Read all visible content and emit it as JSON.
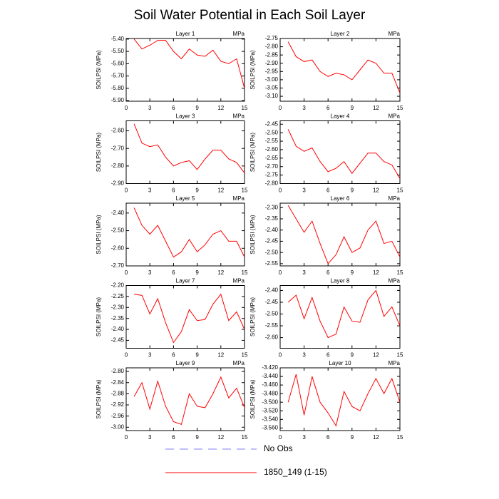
{
  "title": "Soil Water Potential in Each Soil Layer",
  "legend": [
    {
      "name": "No Obs",
      "color": "#7f7fff",
      "dash": true
    },
    {
      "name": "1850_149 (1-15)",
      "color": "#ff0000",
      "dash": false
    }
  ],
  "chart_data": [
    {
      "type": "line",
      "title": "Layer 1",
      "units": "MPa",
      "y_label": "SOILPSI  (MPa)",
      "color": "#ff0000",
      "x": [
        1,
        2,
        3,
        4,
        5,
        6,
        7,
        8,
        9,
        10,
        11,
        12,
        13,
        14,
        15
      ],
      "values": [
        -5.4,
        -5.48,
        -5.45,
        -5.41,
        -5.41,
        -5.5,
        -5.56,
        -5.48,
        -5.53,
        -5.54,
        -5.49,
        -5.58,
        -5.6,
        -5.56,
        -5.8
      ],
      "xlim": [
        0,
        15
      ],
      "xticks": [
        0,
        3,
        6,
        9,
        12,
        15
      ],
      "ylim": [
        -5.905,
        -5.395
      ],
      "yticks": [
        {
          "value": -5.4,
          "label": "-5.40"
        },
        {
          "value": -5.5,
          "label": "-5.50"
        },
        {
          "value": -5.6,
          "label": "-5.60"
        },
        {
          "value": -5.7,
          "label": "-5.70"
        },
        {
          "value": -5.8,
          "label": "-5.80"
        },
        {
          "value": -5.9,
          "label": "-5.90"
        }
      ]
    },
    {
      "type": "line",
      "title": "Layer 2",
      "units": "MPa",
      "y_label": "SOILPSI  (MPa)",
      "color": "#ff0000",
      "x": [
        1,
        2,
        3,
        4,
        5,
        6,
        7,
        8,
        9,
        10,
        11,
        12,
        13,
        14,
        15
      ],
      "values": [
        -2.77,
        -2.86,
        -2.89,
        -2.88,
        -2.95,
        -2.98,
        -2.96,
        -2.97,
        -3.0,
        -2.94,
        -2.88,
        -2.9,
        -2.96,
        -2.96,
        -3.08
      ],
      "xlim": [
        0,
        15
      ],
      "xticks": [
        0,
        3,
        6,
        9,
        12,
        15
      ],
      "ylim": [
        -3.13,
        -2.75
      ],
      "yticks": [
        {
          "value": -2.75,
          "label": "-2.75"
        },
        {
          "value": -2.8,
          "label": "-2.80"
        },
        {
          "value": -2.85,
          "label": "-2.85"
        },
        {
          "value": -2.9,
          "label": "-2.90"
        },
        {
          "value": -2.95,
          "label": "-2.95"
        },
        {
          "value": -3.0,
          "label": "-3.00"
        },
        {
          "value": -3.05,
          "label": "-3.05"
        },
        {
          "value": -3.1,
          "label": "-3.10"
        }
      ]
    },
    {
      "type": "line",
      "title": "Layer 3",
      "units": "MPa",
      "y_label": "SOILPSI  (MPa)",
      "color": "#ff0000",
      "x": [
        1,
        2,
        3,
        4,
        5,
        6,
        7,
        8,
        9,
        10,
        11,
        12,
        13,
        14,
        15
      ],
      "values": [
        -2.56,
        -2.67,
        -2.69,
        -2.68,
        -2.75,
        -2.8,
        -2.78,
        -2.77,
        -2.82,
        -2.76,
        -2.71,
        -2.71,
        -2.76,
        -2.78,
        -2.84
      ],
      "xlim": [
        0,
        15
      ],
      "xticks": [
        0,
        3,
        6,
        9,
        12,
        15
      ],
      "ylim": [
        -2.9,
        -2.543
      ],
      "yticks": [
        {
          "value": -2.6,
          "label": "-2.60"
        },
        {
          "value": -2.7,
          "label": "-2.70"
        },
        {
          "value": -2.8,
          "label": "-2.80"
        },
        {
          "value": -2.9,
          "label": "-2.90"
        }
      ]
    },
    {
      "type": "line",
      "title": "Layer 4",
      "units": "MPa",
      "y_label": "SOILPSI  (MPa)",
      "color": "#ff0000",
      "x": [
        1,
        2,
        3,
        4,
        5,
        6,
        7,
        8,
        9,
        10,
        11,
        12,
        13,
        14,
        15
      ],
      "values": [
        -2.48,
        -2.58,
        -2.61,
        -2.59,
        -2.67,
        -2.73,
        -2.71,
        -2.67,
        -2.74,
        -2.68,
        -2.62,
        -2.62,
        -2.67,
        -2.69,
        -2.77
      ],
      "xlim": [
        0,
        15
      ],
      "xticks": [
        0,
        3,
        6,
        9,
        12,
        15
      ],
      "ylim": [
        -2.8,
        -2.43
      ],
      "yticks": [
        {
          "value": -2.45,
          "label": "-2.45"
        },
        {
          "value": -2.5,
          "label": "-2.50"
        },
        {
          "value": -2.55,
          "label": "-2.55"
        },
        {
          "value": -2.6,
          "label": "-2.60"
        },
        {
          "value": -2.65,
          "label": "-2.65"
        },
        {
          "value": -2.7,
          "label": "-2.70"
        },
        {
          "value": -2.75,
          "label": "-2.75"
        },
        {
          "value": -2.8,
          "label": "-2.80"
        }
      ]
    },
    {
      "type": "line",
      "title": "Layer 5",
      "units": "MPa",
      "y_label": "SOILPSI  (MPa)",
      "color": "#ff0000",
      "x": [
        1,
        2,
        3,
        4,
        5,
        6,
        7,
        8,
        9,
        10,
        11,
        12,
        13,
        14,
        15
      ],
      "values": [
        -2.37,
        -2.47,
        -2.52,
        -2.47,
        -2.56,
        -2.65,
        -2.62,
        -2.55,
        -2.62,
        -2.58,
        -2.52,
        -2.5,
        -2.56,
        -2.56,
        -2.65
      ],
      "xlim": [
        0,
        15
      ],
      "xticks": [
        0,
        3,
        6,
        9,
        12,
        15
      ],
      "ylim": [
        -2.7,
        -2.344
      ],
      "yticks": [
        {
          "value": -2.4,
          "label": "-2.40"
        },
        {
          "value": -2.5,
          "label": "-2.50"
        },
        {
          "value": -2.6,
          "label": "-2.60"
        },
        {
          "value": -2.7,
          "label": "-2.70"
        }
      ]
    },
    {
      "type": "line",
      "title": "Layer 6",
      "units": "MPa",
      "y_label": "SOILPSI  (MPa)",
      "color": "#ff0000",
      "x": [
        1,
        2,
        3,
        4,
        5,
        6,
        7,
        8,
        9,
        10,
        11,
        12,
        13,
        14,
        15
      ],
      "values": [
        -2.29,
        -2.35,
        -2.41,
        -2.36,
        -2.46,
        -2.55,
        -2.51,
        -2.43,
        -2.5,
        -2.48,
        -2.4,
        -2.36,
        -2.46,
        -2.45,
        -2.52
      ],
      "xlim": [
        0,
        15
      ],
      "xticks": [
        0,
        3,
        6,
        9,
        12,
        15
      ],
      "ylim": [
        -2.56,
        -2.28
      ],
      "yticks": [
        {
          "value": -2.3,
          "label": "-2.30"
        },
        {
          "value": -2.35,
          "label": "-2.35"
        },
        {
          "value": -2.4,
          "label": "-2.40"
        },
        {
          "value": -2.45,
          "label": "-2.45"
        },
        {
          "value": -2.5,
          "label": "-2.50"
        },
        {
          "value": -2.55,
          "label": "-2.55"
        }
      ]
    },
    {
      "type": "line",
      "title": "Layer 7",
      "units": "MPa",
      "y_label": "SOILPSI  (MPa)",
      "color": "#ff0000",
      "x": [
        1,
        2,
        3,
        4,
        5,
        6,
        7,
        8,
        9,
        10,
        11,
        12,
        13,
        14,
        15
      ],
      "values": [
        -2.24,
        -2.245,
        -2.33,
        -2.26,
        -2.37,
        -2.46,
        -2.41,
        -2.31,
        -2.36,
        -2.355,
        -2.285,
        -2.24,
        -2.36,
        -2.32,
        -2.4
      ],
      "xlim": [
        0,
        15
      ],
      "xticks": [
        0,
        3,
        6,
        9,
        12,
        15
      ],
      "ylim": [
        -2.486,
        -2.2
      ],
      "yticks": [
        {
          "value": -2.2,
          "label": "-2.20"
        },
        {
          "value": -2.25,
          "label": "-2.25"
        },
        {
          "value": -2.3,
          "label": "-2.30"
        },
        {
          "value": -2.35,
          "label": "-2.35"
        },
        {
          "value": -2.4,
          "label": "-2.40"
        },
        {
          "value": -2.45,
          "label": "-2.45"
        }
      ]
    },
    {
      "type": "line",
      "title": "Layer 8",
      "units": "MPa",
      "y_label": "SOILPSI  (MPa)",
      "color": "#ff0000",
      "x": [
        1,
        2,
        3,
        4,
        5,
        6,
        7,
        8,
        9,
        10,
        11,
        12,
        13,
        14,
        15
      ],
      "values": [
        -2.45,
        -2.42,
        -2.52,
        -2.43,
        -2.53,
        -2.6,
        -2.585,
        -2.47,
        -2.53,
        -2.535,
        -2.44,
        -2.4,
        -2.51,
        -2.47,
        -2.55
      ],
      "xlim": [
        0,
        15
      ],
      "xticks": [
        0,
        3,
        6,
        9,
        12,
        15
      ],
      "ylim": [
        -2.645,
        -2.379
      ],
      "yticks": [
        {
          "value": -2.4,
          "label": "-2.40"
        },
        {
          "value": -2.45,
          "label": "-2.45"
        },
        {
          "value": -2.5,
          "label": "-2.50"
        },
        {
          "value": -2.55,
          "label": "-2.55"
        },
        {
          "value": -2.6,
          "label": "-2.60"
        }
      ]
    },
    {
      "type": "line",
      "title": "Layer 9",
      "units": "MPa",
      "y_label": "SOILPSI  (MPa)",
      "color": "#ff0000",
      "x": [
        1,
        2,
        3,
        4,
        5,
        6,
        7,
        8,
        9,
        10,
        11,
        12,
        13,
        14,
        15
      ],
      "values": [
        -2.89,
        -2.84,
        -2.935,
        -2.835,
        -2.925,
        -2.98,
        -2.99,
        -2.88,
        -2.925,
        -2.93,
        -2.88,
        -2.82,
        -2.895,
        -2.86,
        -2.93
      ],
      "xlim": [
        0,
        15
      ],
      "xticks": [
        0,
        3,
        6,
        9,
        12,
        15
      ],
      "ylim": [
        -3.012,
        -2.787
      ],
      "yticks": [
        {
          "value": -2.8,
          "label": "-2.80"
        },
        {
          "value": -2.84,
          "label": "-2.84"
        },
        {
          "value": -2.88,
          "label": "-2.88"
        },
        {
          "value": -2.92,
          "label": "-2.92"
        },
        {
          "value": -2.96,
          "label": "-2.96"
        },
        {
          "value": -3.0,
          "label": "-3.00"
        }
      ]
    },
    {
      "type": "line",
      "title": "Layer 10",
      "units": "MPa",
      "y_label": "SOILPSI  (MPa)",
      "color": "#ff0000",
      "x": [
        1,
        2,
        3,
        4,
        5,
        6,
        7,
        8,
        9,
        10,
        11,
        12,
        13,
        14,
        15
      ],
      "values": [
        -3.5,
        -3.435,
        -3.53,
        -3.44,
        -3.5,
        -3.525,
        -3.555,
        -3.475,
        -3.51,
        -3.52,
        -3.48,
        -3.445,
        -3.48,
        -3.445,
        -3.5
      ],
      "xlim": [
        0,
        15
      ],
      "xticks": [
        0,
        3,
        6,
        9,
        12,
        15
      ],
      "ylim": [
        -3.566,
        -3.42
      ],
      "yticks": [
        {
          "value": -3.42,
          "label": "-3.420"
        },
        {
          "value": -3.44,
          "label": "-3.440"
        },
        {
          "value": -3.46,
          "label": "-3.460"
        },
        {
          "value": -3.48,
          "label": "-3.480"
        },
        {
          "value": -3.5,
          "label": "-3.500"
        },
        {
          "value": -3.52,
          "label": "-3.520"
        },
        {
          "value": -3.54,
          "label": "-3.540"
        },
        {
          "value": -3.56,
          "label": "-3.560"
        }
      ]
    }
  ]
}
